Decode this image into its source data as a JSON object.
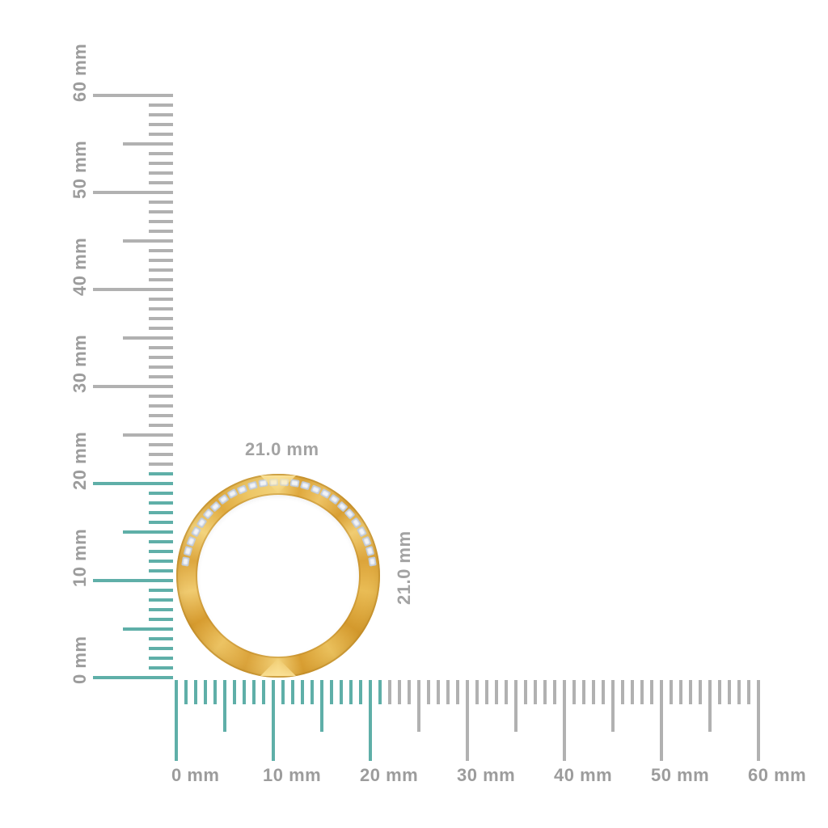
{
  "image": {
    "background": "#ffffff",
    "description": "Gold diamond eternity ring shown edge-on against vertical and horizontal millimeter rulers"
  },
  "colors": {
    "ruler_highlight": "#5fafa8",
    "ruler_gray": "#b1b1b1",
    "label_gray": "#9c9c9c",
    "dimension_label_gray": "#a3a3a3",
    "gold_light": "#f2d27b",
    "gold_dark": "#d79c30",
    "diamond_white": "#f2f4f8",
    "diamond_edge": "#bfc8d4"
  },
  "vertical_ruler": {
    "unit": "mm",
    "min_mm": 0,
    "max_mm": 60,
    "minor_step_mm": 1,
    "half_step_mm": 5,
    "major_step_mm": 10,
    "highlight_to_mm": 21,
    "labels": [
      "0 mm",
      "10 mm",
      "20 mm",
      "30 mm",
      "40 mm",
      "50 mm",
      "60 mm"
    ]
  },
  "horizontal_ruler": {
    "unit": "mm",
    "min_mm": 0,
    "max_mm": 60,
    "minor_step_mm": 1,
    "half_step_mm": 5,
    "major_step_mm": 10,
    "highlight_to_mm": 21,
    "labels": [
      "0 mm",
      "10 mm",
      "20 mm",
      "30 mm",
      "40 mm",
      "50 mm",
      "60 mm"
    ]
  },
  "ring": {
    "width_label": "21.0 mm",
    "height_label": "21.0 mm",
    "outer_diameter_mm": 21.0,
    "diamond_count": 26
  }
}
